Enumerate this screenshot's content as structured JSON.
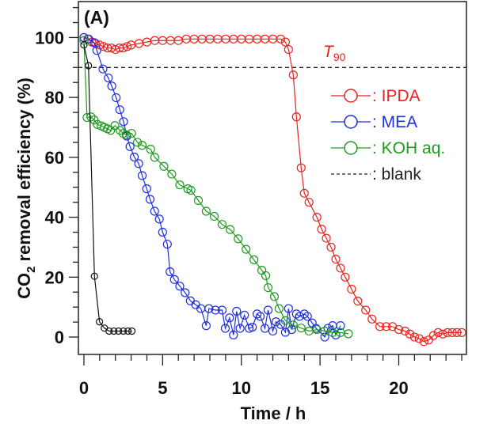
{
  "chart_data": {
    "type": "line",
    "panel_label": "(A)",
    "xlabel": "Time / h",
    "ylabel_main": "CO",
    "ylabel_sub": "2",
    "ylabel_rest": " removal efficiency (%)",
    "xlim": [
      -0.35,
      24.3
    ],
    "ylim": [
      -5.8,
      112
    ],
    "xticks": [
      0,
      5,
      10,
      15,
      20
    ],
    "xtick_labels": [
      "0",
      "5",
      "10",
      "15",
      "20"
    ],
    "yticks": [
      0,
      20,
      40,
      60,
      80,
      100
    ],
    "ytick_labels": [
      "0",
      "20",
      "40",
      "60",
      "80",
      "100"
    ],
    "grid": false,
    "legend_placement": "right",
    "reference_line": {
      "y": 90,
      "label_main": "T",
      "label_sub": "90",
      "color": "#e8231f",
      "style": "dashed"
    },
    "series": [
      {
        "name": ": IPDA",
        "color": "#e8231f",
        "marker": "open-circle",
        "x": [
          0,
          0.25,
          0.5,
          0.75,
          1,
          1.25,
          1.5,
          1.75,
          2,
          2.25,
          2.5,
          2.75,
          3,
          3.5,
          4,
          4.5,
          5,
          5.5,
          6,
          6.5,
          7,
          7.5,
          8,
          8.5,
          9,
          9.5,
          10,
          10.5,
          11,
          11.5,
          12,
          12.5,
          12.8,
          13.0,
          13.3,
          13.5,
          13.8,
          14.0,
          14.3,
          14.8,
          15.1,
          15.4,
          15.7,
          16.0,
          16.3,
          16.6,
          17.0,
          17.4,
          17.9,
          18.3,
          18.8,
          19.2,
          19.6,
          20.0,
          20.4,
          20.7,
          21.0,
          21.3,
          21.6,
          21.9,
          22.2,
          22.5,
          22.8,
          23.1,
          23.4,
          23.7,
          24.0
        ],
        "y": [
          100,
          99.5,
          98.5,
          98,
          97.5,
          97,
          96.5,
          96.5,
          96,
          96.5,
          96.5,
          97,
          97.5,
          98,
          98.5,
          99,
          99,
          99,
          99,
          99.5,
          99.5,
          99.5,
          99.5,
          99.5,
          99.5,
          99.5,
          99.5,
          99.5,
          99.5,
          99.5,
          99.5,
          99.5,
          98.5,
          96,
          87.5,
          73.5,
          56.5,
          48,
          45,
          40,
          36,
          33,
          30,
          26,
          23,
          20,
          16,
          12,
          9,
          6,
          3.5,
          3.5,
          3.5,
          2.5,
          2,
          1,
          0,
          -0.5,
          -1.5,
          -1,
          0.5,
          1.5,
          1,
          1.5,
          1.5,
          1.5,
          1.5
        ]
      },
      {
        "name": ": MEA",
        "color": "#1f2fe0",
        "marker": "open-circle",
        "x": [
          0,
          0.3,
          0.65,
          0.82,
          1.21,
          1.55,
          1.77,
          2.05,
          2.28,
          2.52,
          2.72,
          2.93,
          3.2,
          3.48,
          3.7,
          3.99,
          4.2,
          4.49,
          4.79,
          5.0,
          5.3,
          5.47,
          5.75,
          6.09,
          6.43,
          6.76,
          7.1,
          7.43,
          7.77,
          7.94,
          8.36,
          8.78,
          8.98,
          9.25,
          9.5,
          9.7,
          9.92,
          10.2,
          10.5,
          10.7,
          11.0,
          11.2,
          11.5,
          11.7,
          12.0,
          12.2,
          12.5,
          12.8,
          13.0,
          13.2,
          13.5,
          13.7,
          14.0,
          14.2,
          14.5,
          14.75,
          15.3,
          15.5,
          15.8,
          16.0,
          16.3
        ],
        "y": [
          100,
          99.5,
          98.3,
          95.7,
          89.5,
          86.5,
          83.8,
          79.9,
          75.9,
          71.9,
          67.1,
          63.6,
          60.1,
          57.9,
          53.9,
          49.5,
          46,
          42,
          39.4,
          35,
          31,
          21.8,
          19.2,
          17,
          14.8,
          12.1,
          10.8,
          9.5,
          3.8,
          9.5,
          9,
          9,
          2.9,
          6.4,
          0.7,
          8.6,
          2.9,
          7.3,
          2.9,
          3.3,
          7.7,
          6.9,
          2.9,
          9,
          2,
          5.1,
          4.2,
          1.6,
          9.5,
          2.5,
          7.7,
          6.9,
          7.7,
          6.9,
          4.7,
          2.9,
          0,
          2.9,
          3.8,
          0.7,
          3.8
        ]
      },
      {
        "name": ": KOH aq.",
        "color": "#1f9a1f",
        "marker": "open-circle",
        "x": [
          0,
          0.2,
          0.45,
          0.65,
          0.85,
          1.1,
          1.3,
          1.5,
          1.7,
          1.97,
          2.3,
          2.5,
          2.7,
          3.03,
          3.4,
          3.7,
          4.24,
          4.5,
          5.08,
          5.58,
          6.09,
          6.6,
          6.8,
          7.27,
          7.77,
          8.28,
          8.78,
          9.29,
          9.8,
          10.3,
          10.8,
          11.3,
          11.55,
          11.7,
          12.1,
          12.4,
          12.8,
          13.3,
          13.8,
          14.3,
          14.8,
          15.3,
          15.8,
          16.3,
          16.8
        ],
        "y": [
          99,
          73.3,
          73.5,
          72.5,
          71,
          70.5,
          70,
          69.5,
          69,
          70.6,
          69,
          68,
          67.5,
          68,
          65,
          64,
          62.7,
          60,
          57,
          54.4,
          50.8,
          49.5,
          49,
          45.6,
          42,
          40.3,
          37.6,
          35.9,
          32.8,
          29.3,
          25.8,
          22.3,
          20.5,
          16.5,
          13.5,
          9.5,
          5.5,
          4,
          3,
          2,
          2.5,
          2,
          1.5,
          1.5,
          1.1
        ]
      },
      {
        "name": ": blank",
        "color": "#111111",
        "marker": "open-circle",
        "x": [
          0,
          0.29,
          0.67,
          0.99,
          1.3,
          1.6,
          1.9,
          2.2,
          2.5,
          2.8,
          3.05
        ],
        "y": [
          97.5,
          90.6,
          20.3,
          5.1,
          3,
          2,
          2,
          2,
          2,
          2,
          2
        ]
      }
    ]
  }
}
